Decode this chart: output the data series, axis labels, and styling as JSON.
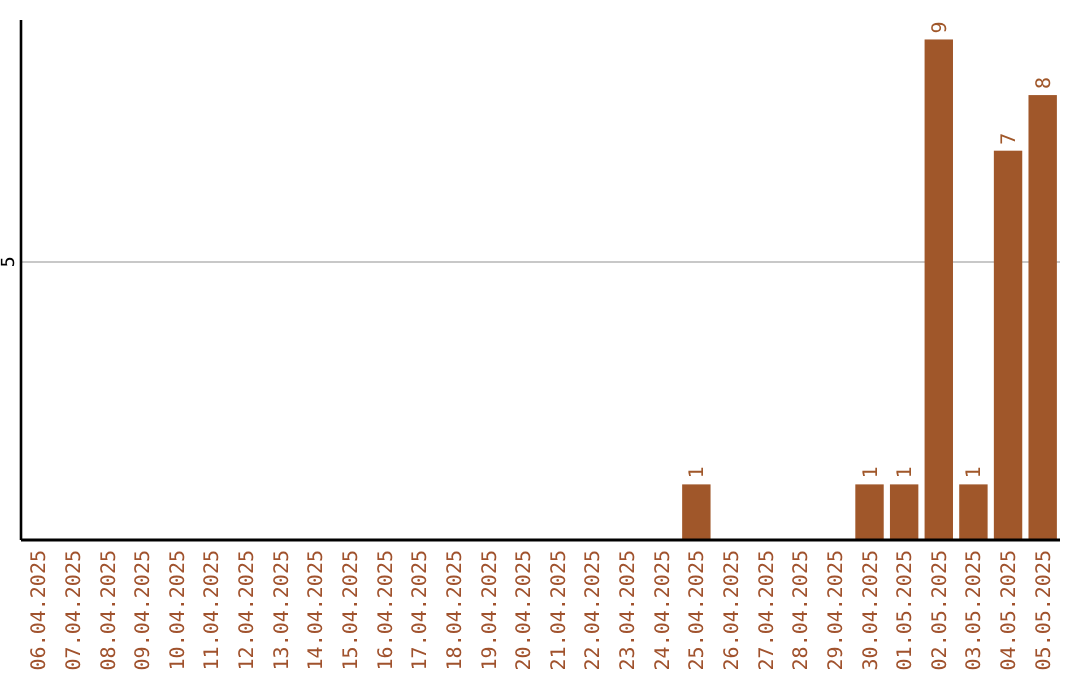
{
  "chart_data": {
    "type": "bar",
    "categories": [
      "06.04.2025",
      "07.04.2025",
      "08.04.2025",
      "09.04.2025",
      "10.04.2025",
      "11.04.2025",
      "12.04.2025",
      "13.04.2025",
      "14.04.2025",
      "15.04.2025",
      "16.04.2025",
      "17.04.2025",
      "18.04.2025",
      "19.04.2025",
      "20.04.2025",
      "21.04.2025",
      "22.04.2025",
      "23.04.2025",
      "24.04.2025",
      "25.04.2025",
      "26.04.2025",
      "27.04.2025",
      "28.04.2025",
      "29.04.2025",
      "30.04.2025",
      "01.05.2025",
      "02.05.2025",
      "03.05.2025",
      "04.05.2025",
      "05.05.2025"
    ],
    "values": [
      null,
      null,
      null,
      null,
      null,
      null,
      null,
      null,
      null,
      null,
      null,
      null,
      null,
      null,
      null,
      null,
      null,
      null,
      null,
      1,
      null,
      null,
      null,
      null,
      1,
      1,
      9,
      1,
      7,
      8
    ],
    "data_labels": true,
    "color": "#a0572a",
    "ylim": [
      0,
      9.35
    ],
    "yticks": [
      {
        "value": 0,
        "label": null
      },
      5
    ],
    "grid": "y"
  }
}
